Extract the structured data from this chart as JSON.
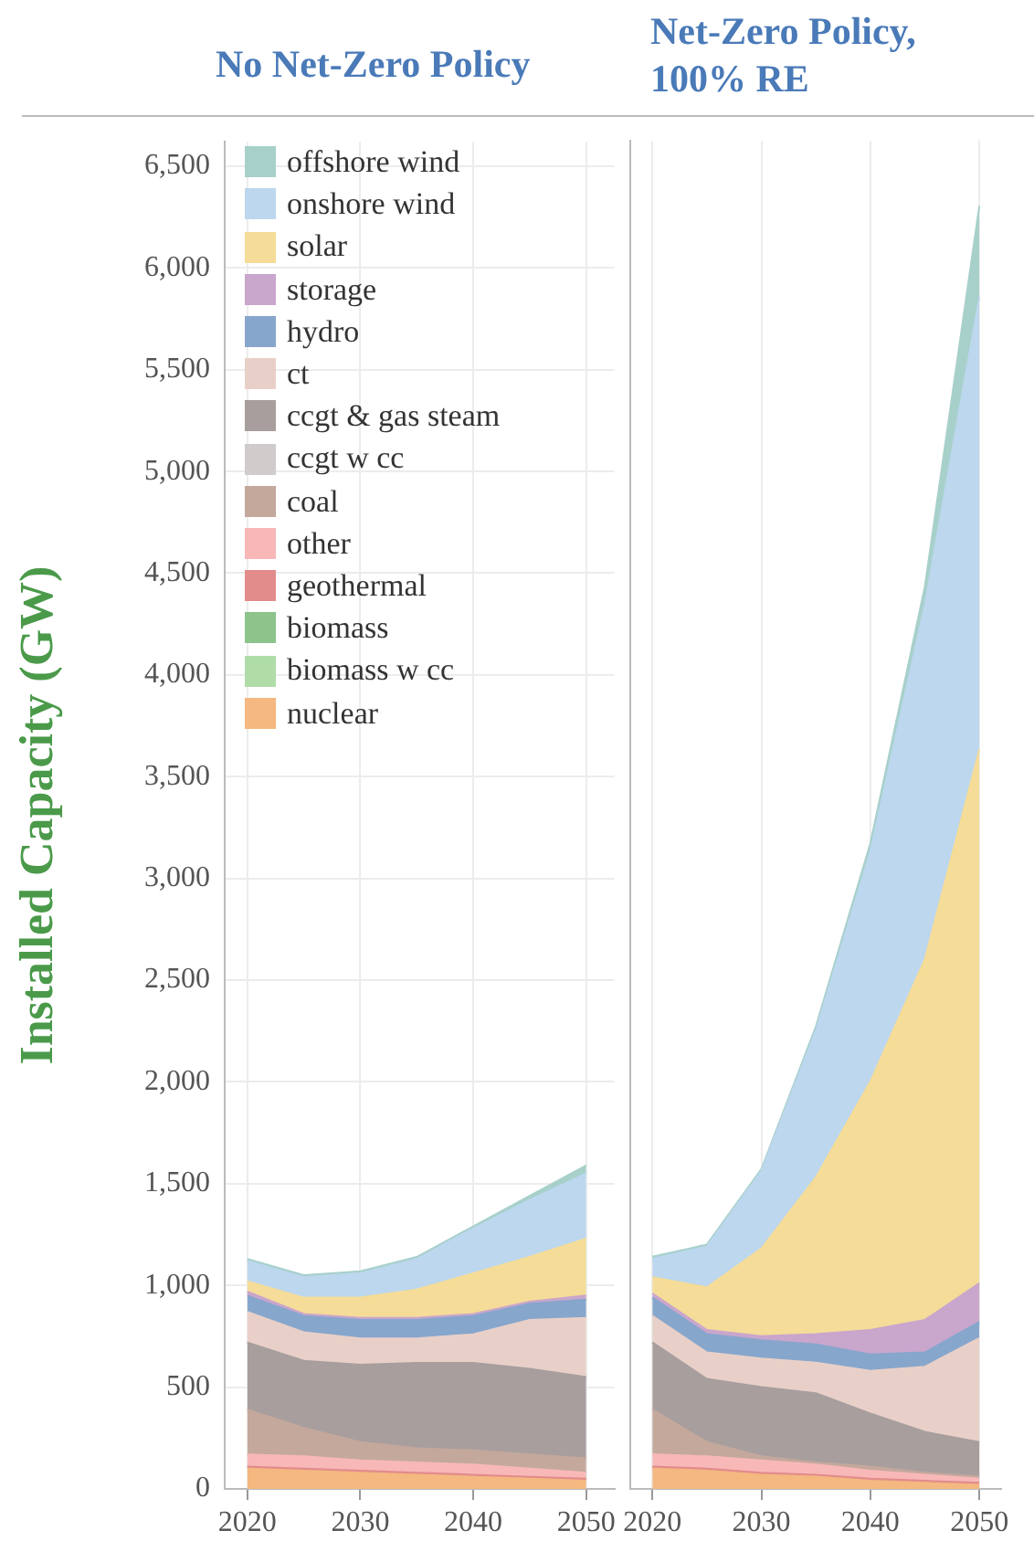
{
  "chart_data": [
    {
      "type": "area",
      "title": "No Net-Zero Policy",
      "ylabel": "Installed Capacity (GW)",
      "stacked": true,
      "x": [
        2020,
        2025,
        2030,
        2035,
        2040,
        2045,
        2050
      ],
      "xlim": [
        2018,
        2052.5
      ],
      "xticks": [
        2020,
        2030,
        2040,
        2050
      ],
      "ylim": [
        0,
        6620
      ],
      "yticks": [
        {
          "value": 0,
          "label": "0"
        },
        {
          "value": 500,
          "label": "500"
        },
        {
          "value": 1000,
          "label": "1,000"
        },
        {
          "value": 1500,
          "label": "1,500"
        },
        {
          "value": 2000,
          "label": "2,000"
        },
        {
          "value": 2500,
          "label": "2,500"
        },
        {
          "value": 3000,
          "label": "3,000"
        },
        {
          "value": 3500,
          "label": "3,500"
        },
        {
          "value": 4000,
          "label": "4,000"
        },
        {
          "value": 4500,
          "label": "4,500"
        },
        {
          "value": 5000,
          "label": "5,000"
        },
        {
          "value": 5500,
          "label": "5,500"
        },
        {
          "value": 6000,
          "label": "6,000"
        },
        {
          "value": 6500,
          "label": "6,500"
        }
      ],
      "grid": true,
      "legend": "top left",
      "series": [
        {
          "name": "nuclear",
          "color": "#f4b880",
          "values": [
            100,
            90,
            80,
            70,
            60,
            50,
            40
          ]
        },
        {
          "name": "biomass w cc",
          "color": "#b0dca8",
          "values": [
            null,
            null,
            null,
            null,
            null,
            null,
            null
          ]
        },
        {
          "name": "biomass",
          "color": "#8cc48c",
          "values": [
            null,
            null,
            null,
            null,
            null,
            null,
            null
          ]
        },
        {
          "name": "geothermal",
          "color": "#e28c8c",
          "values": [
            10,
            10,
            10,
            10,
            10,
            10,
            10
          ]
        },
        {
          "name": "other",
          "color": "#f8b8b8",
          "values": [
            60,
            60,
            50,
            50,
            50,
            40,
            30
          ]
        },
        {
          "name": "coal",
          "color": "#c4a89c",
          "values": [
            220,
            140,
            90,
            70,
            70,
            70,
            70
          ]
        },
        {
          "name": "ccgt w cc",
          "color": "#d0cccc",
          "values": [
            null,
            null,
            null,
            null,
            null,
            null,
            null
          ]
        },
        {
          "name": "ccgt & gas steam",
          "color": "#a89e9e",
          "values": [
            330,
            330,
            380,
            420,
            430,
            420,
            400
          ]
        },
        {
          "name": "ct",
          "color": "#e8d0c8",
          "values": [
            150,
            140,
            130,
            120,
            140,
            240,
            290
          ]
        },
        {
          "name": "hydro",
          "color": "#87a6cc",
          "values": [
            80,
            80,
            90,
            90,
            90,
            80,
            90
          ]
        },
        {
          "name": "storage",
          "color": "#c9a6cc",
          "values": [
            20,
            10,
            10,
            10,
            10,
            10,
            20
          ]
        },
        {
          "name": "solar",
          "color": "#f5dc98",
          "values": [
            50,
            80,
            100,
            140,
            200,
            220,
            280
          ]
        },
        {
          "name": "onshore wind",
          "color": "#bcd7ee",
          "values": [
            100,
            100,
            120,
            150,
            220,
            280,
            320
          ]
        },
        {
          "name": "offshore wind",
          "color": "#a8d0cb",
          "values": [
            10,
            10,
            10,
            10,
            10,
            20,
            40
          ]
        }
      ]
    },
    {
      "type": "area",
      "title": "Net-Zero Policy, 100% RE",
      "stacked": true,
      "tick_labels": "x",
      "x": [
        2020,
        2025,
        2030,
        2035,
        2040,
        2045,
        2050
      ],
      "xlim": [
        2018,
        2052
      ],
      "xticks": [
        2020,
        2030,
        2040,
        2050
      ],
      "ylim": [
        0,
        6620
      ],
      "grid": true,
      "series": [
        {
          "color": "#f4b880",
          "values": [
            100,
            90,
            70,
            60,
            40,
            30,
            20
          ]
        },
        {
          "color": "#b0dca8",
          "values": [
            null,
            null,
            null,
            null,
            null,
            null,
            null
          ]
        },
        {
          "color": "#8cc48c",
          "values": [
            null,
            null,
            null,
            null,
            null,
            null,
            null
          ]
        },
        {
          "color": "#e28c8c",
          "values": [
            10,
            10,
            10,
            10,
            10,
            10,
            10
          ]
        },
        {
          "color": "#f8b8b8",
          "values": [
            60,
            60,
            60,
            50,
            40,
            30,
            20
          ]
        },
        {
          "color": "#c4a89c",
          "values": [
            220,
            70,
            20,
            10,
            20,
            10,
            10
          ]
        },
        {
          "color": "#d0cccc",
          "values": [
            null,
            null,
            null,
            null,
            null,
            null,
            null
          ]
        },
        {
          "color": "#a89e9e",
          "values": [
            330,
            310,
            340,
            340,
            260,
            200,
            170
          ]
        },
        {
          "color": "#e8d0c8",
          "values": [
            130,
            130,
            140,
            150,
            210,
            320,
            510
          ]
        },
        {
          "color": "#87a6cc",
          "values": [
            90,
            90,
            90,
            90,
            80,
            70,
            80
          ]
        },
        {
          "color": "#c9a6cc",
          "values": [
            20,
            20,
            20,
            50,
            120,
            160,
            190
          ]
        },
        {
          "color": "#f5dc98",
          "values": [
            80,
            210,
            430,
            770,
            1220,
            1770,
            2620
          ]
        },
        {
          "color": "#bcd7ee",
          "values": [
            90,
            200,
            380,
            720,
            1130,
            1740,
            2220
          ]
        },
        {
          "color": "#a8d0cb",
          "values": [
            10,
            10,
            10,
            20,
            40,
            90,
            450
          ]
        }
      ]
    }
  ]
}
